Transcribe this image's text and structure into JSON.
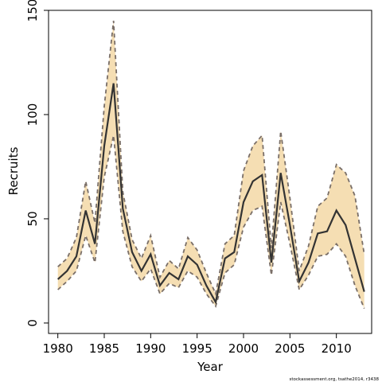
{
  "chart_data": {
    "type": "line",
    "xlabel": "Year",
    "ylabel": "Recruits",
    "xlim": [
      1979,
      2013.8
    ],
    "ylim": [
      -5,
      150
    ],
    "xticks": [
      1980,
      1985,
      1990,
      1995,
      2000,
      2005,
      2010
    ],
    "yticks": [
      0,
      50,
      100,
      150
    ],
    "grid": false,
    "band_color": "#F5DEB3",
    "line_color": "#333333",
    "band_edge_color": "#7a6f68",
    "x": [
      1980,
      1981,
      1982,
      1983,
      1984,
      1985,
      1986,
      1987,
      1988,
      1989,
      1990,
      1991,
      1992,
      1993,
      1994,
      1995,
      1996,
      1997,
      1998,
      1999,
      2000,
      2001,
      2002,
      2003,
      2004,
      2005,
      2006,
      2007,
      2008,
      2009,
      2010,
      2011,
      2012,
      2013
    ],
    "series": [
      {
        "role": "estimate",
        "values": [
          21,
          25,
          32,
          54,
          38,
          85,
          115,
          55,
          34,
          25,
          33,
          18,
          24,
          21,
          32,
          28,
          18,
          10,
          31,
          34,
          58,
          68,
          71,
          29,
          72,
          47,
          20,
          29,
          43,
          44,
          54,
          47,
          31,
          15
        ]
      },
      {
        "role": "upper",
        "values": [
          27,
          31,
          41,
          68,
          48,
          104,
          145,
          63,
          40,
          31,
          42,
          22,
          30,
          26,
          41,
          35,
          24,
          14,
          38,
          42,
          73,
          85,
          90,
          36,
          92,
          60,
          25,
          37,
          56,
          60,
          76,
          72,
          61,
          33
        ]
      },
      {
        "role": "lower",
        "values": [
          16,
          20,
          25,
          42,
          29,
          70,
          90,
          44,
          27,
          20,
          26,
          14,
          19,
          17,
          25,
          22,
          14,
          8,
          24,
          28,
          46,
          54,
          56,
          23,
          58,
          38,
          16,
          23,
          32,
          33,
          38,
          32,
          18,
          7
        ]
      }
    ]
  },
  "footer": {
    "source_text": "stockassessment.org, tsathe2014, r3438"
  }
}
